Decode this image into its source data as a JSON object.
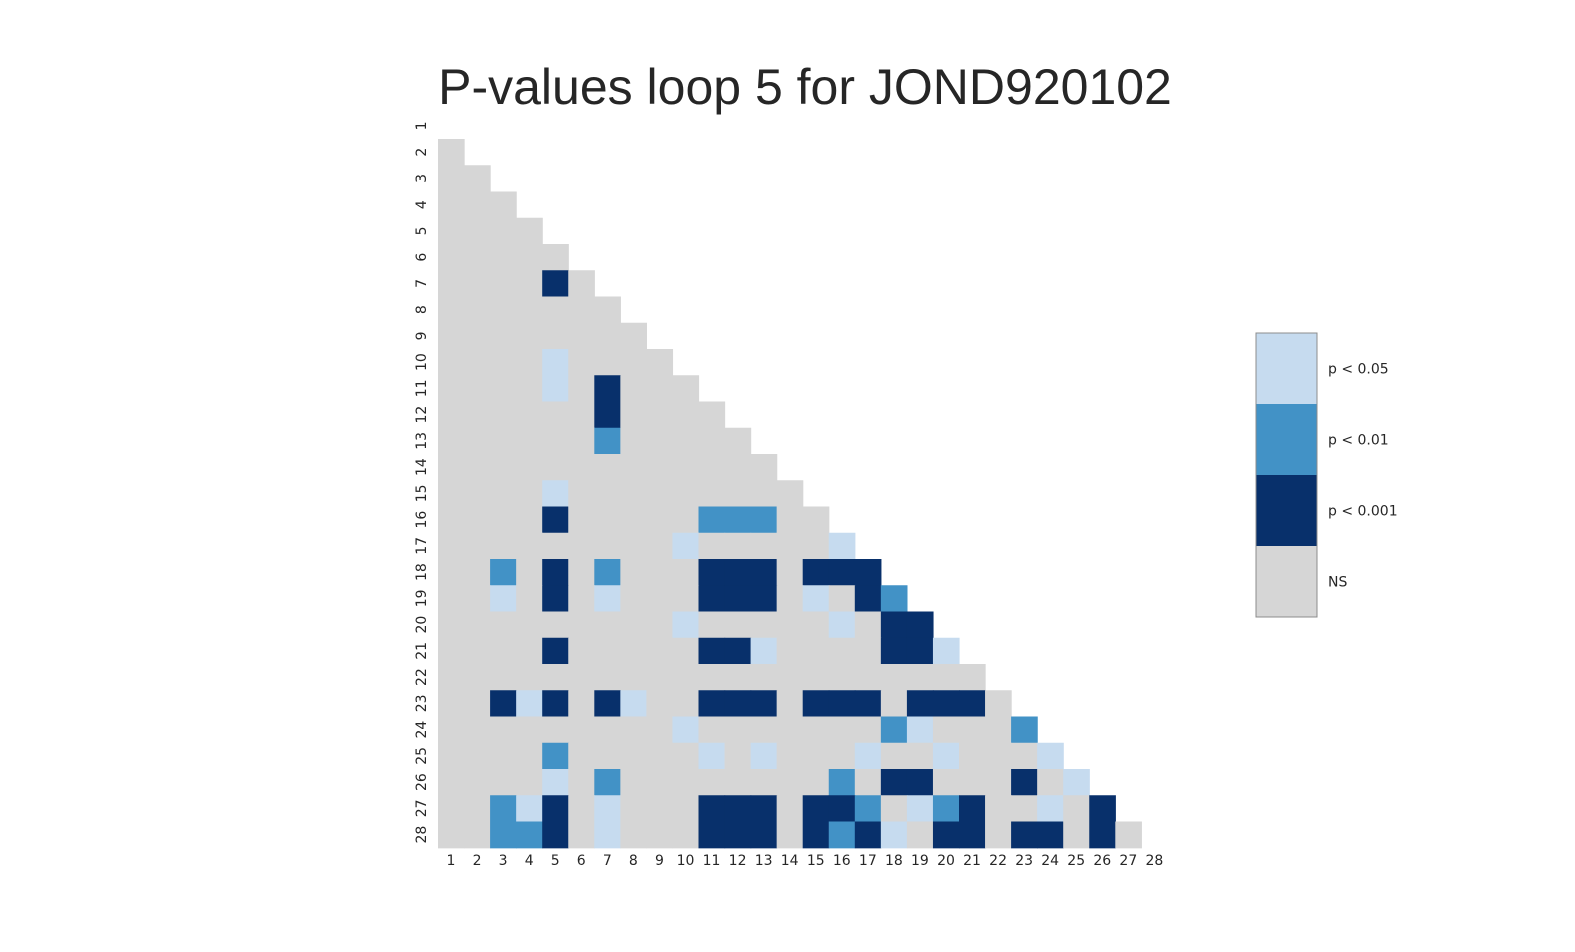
{
  "chart_data": {
    "type": "heatmap",
    "title": "P-values loop 5 for JOND920102",
    "xlabel": "",
    "ylabel": "",
    "x_ticks": [
      "1",
      "2",
      "3",
      "4",
      "5",
      "6",
      "7",
      "8",
      "9",
      "10",
      "11",
      "12",
      "13",
      "14",
      "15",
      "16",
      "17",
      "18",
      "19",
      "20",
      "21",
      "22",
      "23",
      "24",
      "25",
      "26",
      "27",
      "28"
    ],
    "y_ticks": [
      "1",
      "2",
      "3",
      "4",
      "5",
      "6",
      "7",
      "8",
      "9",
      "10",
      "11",
      "12",
      "13",
      "14",
      "15",
      "16",
      "17",
      "18",
      "19",
      "20",
      "21",
      "22",
      "23",
      "24",
      "25",
      "26",
      "27",
      "28"
    ],
    "mask": "upper triangle including diagonal",
    "levels": [
      {
        "code": 0,
        "label": "NS",
        "color": "#d6d6d6"
      },
      {
        "code": 1,
        "label": "p < 0.001",
        "color": "#08306b"
      },
      {
        "code": 2,
        "label": "p < 0.01",
        "color": "#4292c6"
      },
      {
        "code": 3,
        "label": "p < 0.05",
        "color": "#c6dbef"
      }
    ],
    "legend_order": [
      "p < 0.05",
      "p < 0.01",
      "p < 0.001",
      "NS"
    ],
    "legend_position": "right",
    "grid": false,
    "rows": [
      [],
      [
        0
      ],
      [
        0,
        0
      ],
      [
        0,
        0,
        0
      ],
      [
        0,
        0,
        0,
        0
      ],
      [
        0,
        0,
        0,
        0,
        0
      ],
      [
        0,
        0,
        0,
        0,
        1,
        0
      ],
      [
        0,
        0,
        0,
        0,
        0,
        0,
        0
      ],
      [
        0,
        0,
        0,
        0,
        0,
        0,
        0,
        0
      ],
      [
        0,
        0,
        0,
        0,
        3,
        0,
        0,
        0,
        0
      ],
      [
        0,
        0,
        0,
        0,
        3,
        0,
        1,
        0,
        0,
        0
      ],
      [
        0,
        0,
        0,
        0,
        0,
        0,
        1,
        0,
        0,
        0,
        0
      ],
      [
        0,
        0,
        0,
        0,
        0,
        0,
        2,
        0,
        0,
        0,
        0,
        0
      ],
      [
        0,
        0,
        0,
        0,
        0,
        0,
        0,
        0,
        0,
        0,
        0,
        0,
        0
      ],
      [
        0,
        0,
        0,
        0,
        3,
        0,
        0,
        0,
        0,
        0,
        0,
        0,
        0,
        0
      ],
      [
        0,
        0,
        0,
        0,
        1,
        0,
        0,
        0,
        0,
        0,
        2,
        2,
        2,
        0,
        0
      ],
      [
        0,
        0,
        0,
        0,
        0,
        0,
        0,
        0,
        0,
        3,
        0,
        0,
        0,
        0,
        0,
        3
      ],
      [
        0,
        0,
        2,
        0,
        1,
        0,
        2,
        0,
        0,
        0,
        1,
        1,
        1,
        0,
        1,
        1,
        1
      ],
      [
        0,
        0,
        3,
        0,
        1,
        0,
        3,
        0,
        0,
        0,
        1,
        1,
        1,
        0,
        3,
        0,
        1,
        2
      ],
      [
        0,
        0,
        0,
        0,
        0,
        0,
        0,
        0,
        0,
        3,
        0,
        0,
        0,
        0,
        0,
        3,
        0,
        1,
        1
      ],
      [
        0,
        0,
        0,
        0,
        1,
        0,
        0,
        0,
        0,
        0,
        1,
        1,
        3,
        0,
        0,
        0,
        0,
        1,
        1,
        3
      ],
      [
        0,
        0,
        0,
        0,
        0,
        0,
        0,
        0,
        0,
        0,
        0,
        0,
        0,
        0,
        0,
        0,
        0,
        0,
        0,
        0,
        0
      ],
      [
        0,
        0,
        1,
        3,
        1,
        0,
        1,
        3,
        0,
        0,
        1,
        1,
        1,
        0,
        1,
        1,
        1,
        0,
        1,
        1,
        1,
        0
      ],
      [
        0,
        0,
        0,
        0,
        0,
        0,
        0,
        0,
        0,
        3,
        0,
        0,
        0,
        0,
        0,
        0,
        0,
        2,
        3,
        0,
        0,
        0,
        2
      ],
      [
        0,
        0,
        0,
        0,
        2,
        0,
        0,
        0,
        0,
        0,
        3,
        0,
        3,
        0,
        0,
        0,
        3,
        0,
        0,
        3,
        0,
        0,
        0,
        3
      ],
      [
        0,
        0,
        0,
        0,
        3,
        0,
        2,
        0,
        0,
        0,
        0,
        0,
        0,
        0,
        0,
        2,
        0,
        1,
        1,
        0,
        0,
        0,
        1,
        0,
        3
      ],
      [
        0,
        0,
        2,
        3,
        1,
        0,
        3,
        0,
        0,
        0,
        1,
        1,
        1,
        0,
        1,
        1,
        2,
        0,
        3,
        2,
        1,
        0,
        0,
        3,
        0,
        1
      ],
      [
        0,
        0,
        2,
        2,
        1,
        0,
        3,
        0,
        0,
        0,
        1,
        1,
        1,
        0,
        1,
        2,
        1,
        3,
        0,
        1,
        1,
        0,
        1,
        1,
        0,
        1,
        0
      ]
    ]
  }
}
